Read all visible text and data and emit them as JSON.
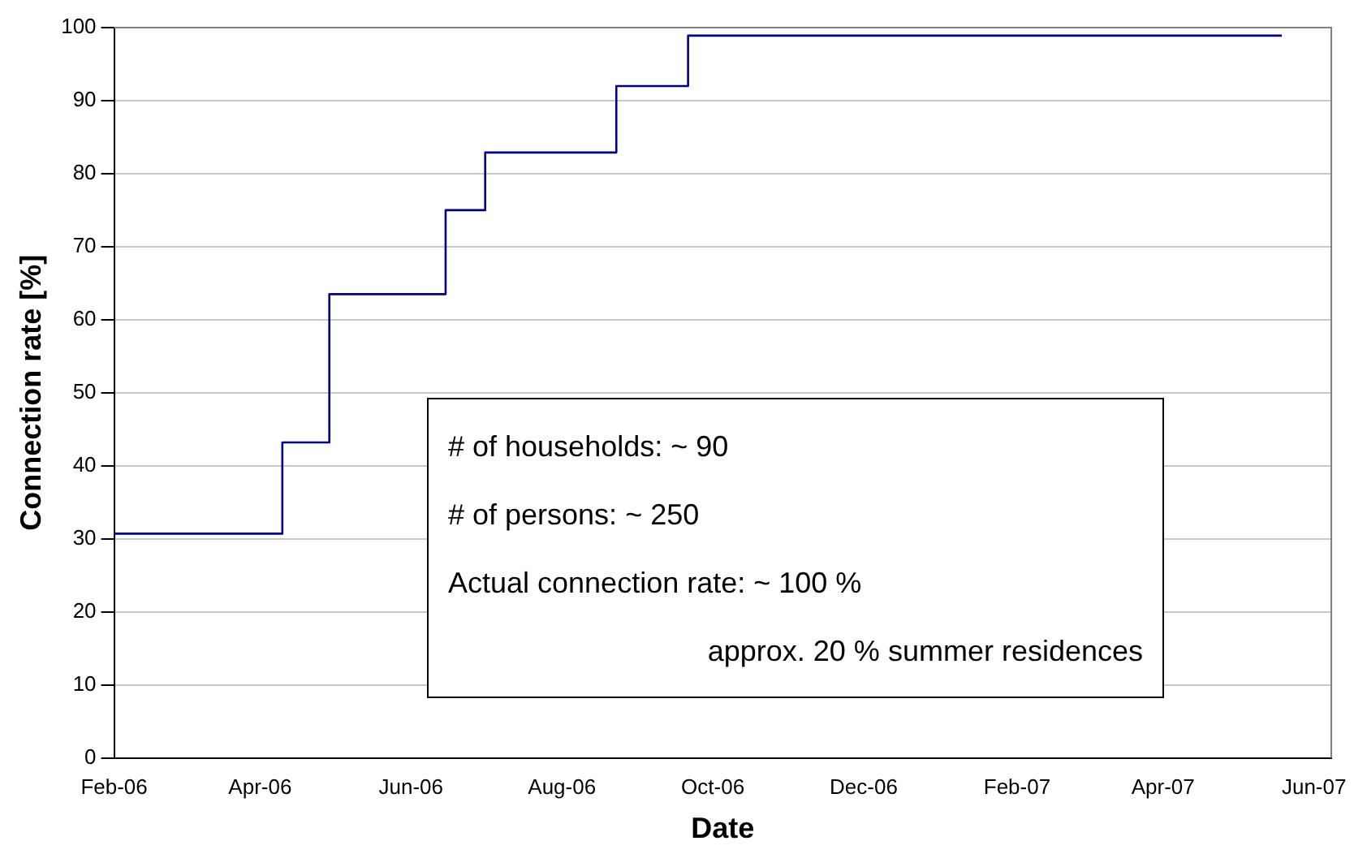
{
  "chart_data": {
    "type": "step",
    "xlabel": "Date",
    "ylabel": "Connection rate [%]",
    "x": [
      "2006-02-01",
      "2006-04-10",
      "2006-04-29",
      "2006-06-15",
      "2006-07-01",
      "2006-08-23",
      "2006-09-21",
      "2007-05-19"
    ],
    "series": [
      {
        "color": "#000080",
        "values": [
          30.7,
          43.2,
          63.5,
          75.0,
          82.9,
          92.0,
          98.9,
          98.9
        ]
      }
    ],
    "xlim": [
      "2006-02-01",
      "2007-06-08"
    ],
    "xticks": [
      {
        "value": "2006-02-01",
        "label": "Feb-06"
      },
      {
        "value": "2006-04-01",
        "label": "Apr-06"
      },
      {
        "value": "2006-06-01",
        "label": "Jun-06"
      },
      {
        "value": "2006-08-01",
        "label": "Aug-06"
      },
      {
        "value": "2006-10-01",
        "label": "Oct-06"
      },
      {
        "value": "2006-12-01",
        "label": "Dec-06"
      },
      {
        "value": "2007-02-01",
        "label": "Feb-07"
      },
      {
        "value": "2007-04-01",
        "label": "Apr-07"
      },
      {
        "value": "2007-06-01",
        "label": "Jun-07"
      }
    ],
    "ylim": [
      0,
      100
    ],
    "yticks": [
      0,
      10,
      20,
      30,
      40,
      50,
      60,
      70,
      80,
      90,
      100
    ],
    "grid": "y",
    "legend": false,
    "marker": "none",
    "line_style": "solid",
    "annotations": [
      "# of households:  ~ 90",
      "# of persons: ~ 250",
      "Actual connection rate: ~ 100 %",
      "approx. 20 % summer residences"
    ]
  }
}
